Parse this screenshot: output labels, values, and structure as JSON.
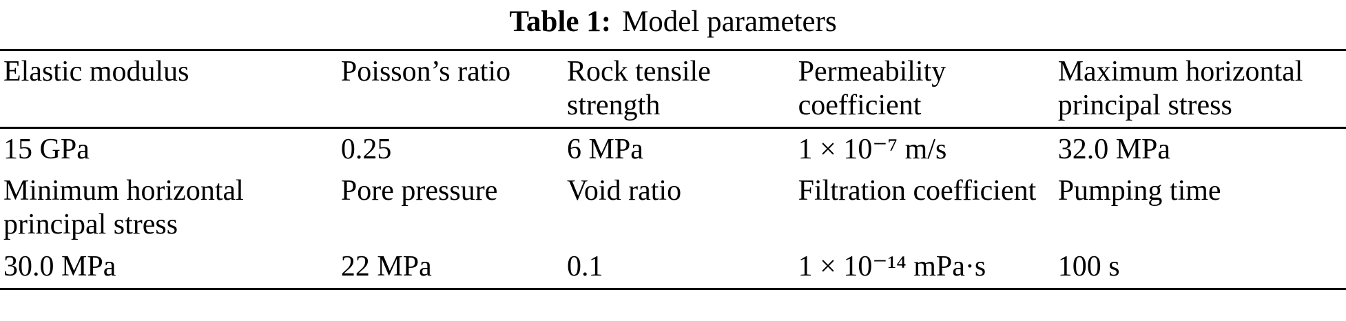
{
  "caption": {
    "label": "Table 1:",
    "title": "Model parameters"
  },
  "table": {
    "rows": [
      {
        "cells": [
          "Elastic modulus",
          "Poisson’s ratio",
          "Rock tensile strength",
          "Permeability coefficient",
          "Maximum horizontal principal stress"
        ]
      },
      {
        "cells": [
          "15 GPa",
          "0.25",
          "6 MPa",
          "1 × 10⁻⁷ m/s",
          "32.0 MPa"
        ]
      },
      {
        "cells": [
          "Minimum horizontal principal stress",
          "Pore pressure",
          "Void ratio",
          "Filtration coefficient",
          "Pumping time"
        ]
      },
      {
        "cells": [
          "30.0 MPa",
          "22 MPa",
          "0.1",
          "1 × 10⁻¹⁴ mPa·s",
          "100 s"
        ]
      }
    ]
  }
}
